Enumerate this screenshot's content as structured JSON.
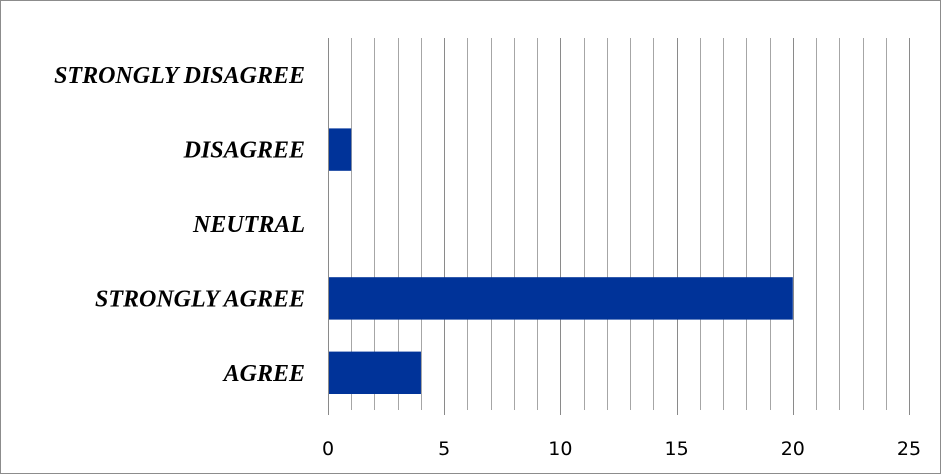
{
  "chart_data": {
    "type": "bar",
    "orientation": "horizontal",
    "categories": [
      "AGREE",
      "STRONGLY AGREE",
      "NEUTRAL",
      "DISAGREE",
      "STRONGLY DISAGREE"
    ],
    "values": [
      4,
      20,
      0,
      1,
      0
    ],
    "xlim": [
      0,
      25
    ],
    "x_ticks": [
      0,
      5,
      10,
      15,
      20,
      25
    ],
    "minor_grid_step": 1,
    "grid": true,
    "legend": "none",
    "bar_color": "#003399",
    "title": "",
    "xlabel": "",
    "ylabel": ""
  }
}
